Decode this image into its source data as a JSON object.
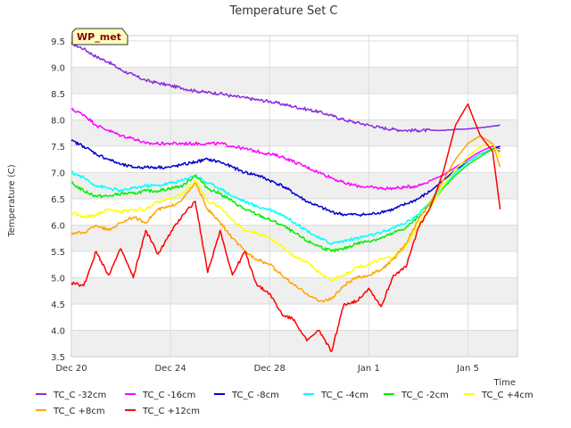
{
  "chart_data": {
    "type": "line",
    "title": "Temperature Set C",
    "xlabel": "Time",
    "ylabel": "Temperature (C)",
    "badge": "WP_met",
    "badge_colors": {
      "fill": "#ffffc0",
      "border": "#333333",
      "text": "#8b0000"
    },
    "xlim": [
      0,
      18
    ],
    "ylim": [
      3.5,
      9.6
    ],
    "grid": true,
    "band_color": "#efefef",
    "legend_position": "bottom",
    "x_ticks": [
      {
        "x": 0,
        "label": "Dec 20"
      },
      {
        "x": 4,
        "label": "Dec 24"
      },
      {
        "x": 8,
        "label": "Dec 28"
      },
      {
        "x": 12,
        "label": "Jan 1"
      },
      {
        "x": 16,
        "label": "Jan 5"
      }
    ],
    "y_ticks": [
      3.5,
      4.0,
      4.5,
      5.0,
      5.5,
      6.0,
      6.5,
      7.0,
      7.5,
      8.0,
      8.5,
      9.0,
      9.5
    ],
    "y_tick_labels": [
      "3.5",
      "4.0",
      "4.5",
      "5.0",
      "5.5",
      "6.0",
      "6.5",
      "7.0",
      "7.5",
      "8.0",
      "8.5",
      "9.0",
      "9.5"
    ],
    "x": [
      0,
      0.5,
      1,
      1.5,
      2,
      2.5,
      3,
      3.5,
      4,
      4.5,
      5,
      5.5,
      6,
      6.5,
      7,
      7.5,
      8,
      8.5,
      9,
      9.5,
      10,
      10.5,
      11,
      11.5,
      12,
      12.5,
      13,
      13.5,
      14,
      14.5,
      15,
      15.5,
      16,
      16.5,
      17,
      17.3
    ],
    "series": [
      {
        "name": "TC_C -32cm",
        "color": "#8a2be2",
        "values": [
          9.45,
          9.35,
          9.2,
          9.1,
          8.95,
          8.85,
          8.75,
          8.7,
          8.65,
          8.6,
          8.55,
          8.52,
          8.5,
          8.45,
          8.42,
          8.38,
          8.35,
          8.3,
          8.25,
          8.2,
          8.15,
          8.08,
          8.0,
          7.95,
          7.9,
          7.85,
          7.82,
          7.8,
          7.8,
          7.8,
          7.8,
          7.82,
          7.83,
          7.85,
          7.88,
          7.9
        ]
      },
      {
        "name": "TC_C -16cm",
        "color": "#ff00ff",
        "values": [
          8.2,
          8.1,
          7.9,
          7.8,
          7.7,
          7.65,
          7.55,
          7.55,
          7.55,
          7.55,
          7.55,
          7.55,
          7.55,
          7.5,
          7.45,
          7.4,
          7.35,
          7.3,
          7.2,
          7.1,
          7.0,
          6.9,
          6.8,
          6.75,
          6.72,
          6.7,
          6.7,
          6.72,
          6.75,
          6.85,
          6.95,
          7.1,
          7.25,
          7.4,
          7.5,
          7.45
        ]
      },
      {
        "name": "TC_C -8cm",
        "color": "#0000cd",
        "values": [
          7.6,
          7.5,
          7.35,
          7.25,
          7.15,
          7.1,
          7.1,
          7.1,
          7.1,
          7.15,
          7.2,
          7.25,
          7.2,
          7.1,
          7.0,
          6.95,
          6.85,
          6.75,
          6.6,
          6.45,
          6.35,
          6.25,
          6.2,
          6.2,
          6.2,
          6.25,
          6.3,
          6.4,
          6.5,
          6.65,
          6.85,
          7.05,
          7.2,
          7.35,
          7.45,
          7.5
        ]
      },
      {
        "name": "TC_C -4cm",
        "color": "#00ffff",
        "values": [
          7.0,
          6.9,
          6.75,
          6.7,
          6.65,
          6.7,
          6.75,
          6.75,
          6.8,
          6.85,
          6.95,
          6.8,
          6.7,
          6.55,
          6.45,
          6.35,
          6.3,
          6.2,
          6.05,
          5.9,
          5.75,
          5.65,
          5.7,
          5.75,
          5.8,
          5.85,
          5.95,
          6.05,
          6.2,
          6.45,
          6.75,
          7.0,
          7.2,
          7.35,
          7.45,
          7.4
        ]
      },
      {
        "name": "TC_C -2cm",
        "color": "#00ee00",
        "values": [
          6.8,
          6.65,
          6.55,
          6.55,
          6.6,
          6.6,
          6.65,
          6.65,
          6.7,
          6.75,
          6.95,
          6.7,
          6.6,
          6.45,
          6.3,
          6.2,
          6.1,
          6.0,
          5.85,
          5.7,
          5.6,
          5.5,
          5.55,
          5.65,
          5.7,
          5.75,
          5.85,
          5.95,
          6.15,
          6.4,
          6.7,
          6.95,
          7.15,
          7.3,
          7.45,
          7.4
        ]
      },
      {
        "name": "TC_C +4cm",
        "color": "#ffff00",
        "values": [
          6.25,
          6.15,
          6.2,
          6.3,
          6.25,
          6.3,
          6.3,
          6.45,
          6.5,
          6.6,
          6.85,
          6.45,
          6.35,
          6.1,
          5.9,
          5.85,
          5.75,
          5.6,
          5.4,
          5.3,
          5.1,
          4.95,
          5.05,
          5.2,
          5.25,
          5.35,
          5.4,
          5.6,
          6.0,
          6.35,
          6.75,
          7.05,
          7.3,
          7.5,
          7.55,
          7.3
        ]
      },
      {
        "name": "TC_C +8cm",
        "color": "#ffa500",
        "values": [
          5.85,
          5.85,
          6.0,
          5.9,
          6.05,
          6.15,
          6.05,
          6.3,
          6.35,
          6.5,
          6.8,
          6.3,
          6.05,
          5.75,
          5.5,
          5.35,
          5.25,
          5.05,
          4.85,
          4.7,
          4.55,
          4.6,
          4.85,
          5.0,
          5.05,
          5.15,
          5.35,
          5.65,
          6.1,
          6.45,
          6.85,
          7.25,
          7.55,
          7.7,
          7.55,
          7.1
        ]
      },
      {
        "name": "TC_C +12cm",
        "color": "#ff0000",
        "values": [
          4.9,
          4.85,
          5.5,
          5.05,
          5.55,
          5.0,
          5.9,
          5.45,
          5.85,
          6.2,
          6.45,
          5.1,
          5.9,
          5.05,
          5.5,
          4.85,
          4.7,
          4.3,
          4.2,
          3.8,
          4.0,
          3.6,
          4.5,
          4.55,
          4.8,
          4.45,
          5.05,
          5.2,
          5.95,
          6.35,
          7.0,
          7.9,
          8.3,
          7.7,
          7.4,
          6.3
        ]
      }
    ]
  }
}
